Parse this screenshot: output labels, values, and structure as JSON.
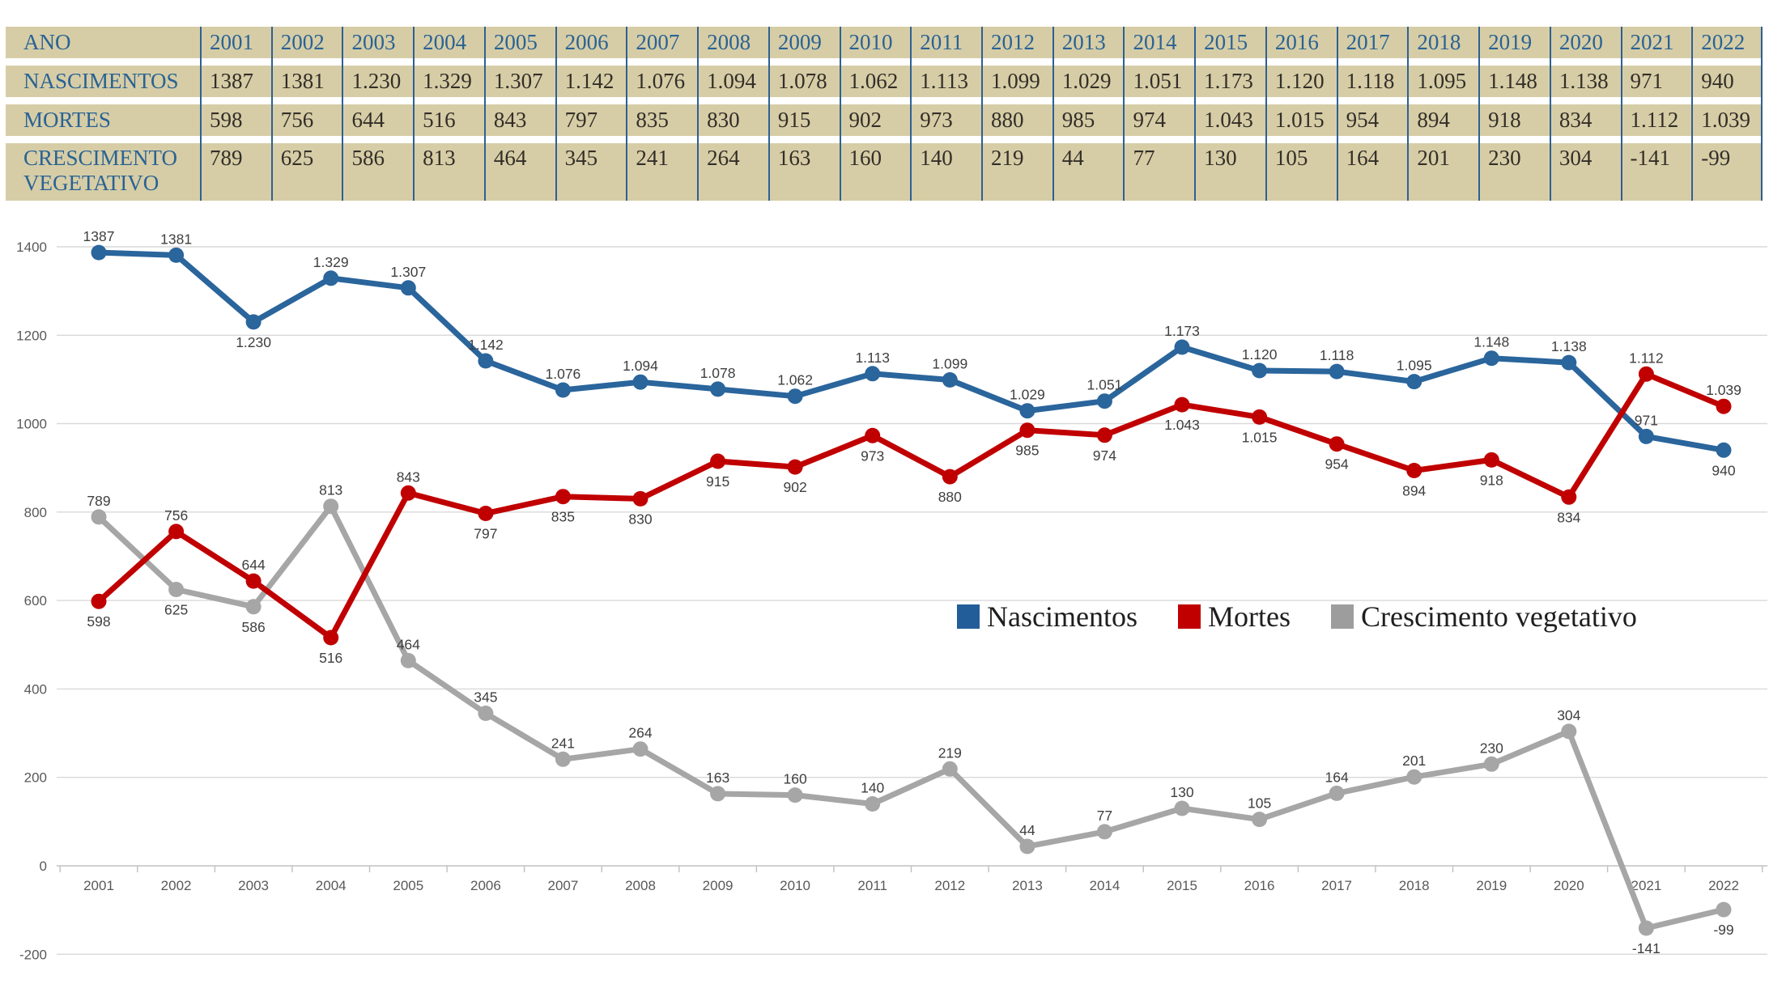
{
  "table": {
    "header_label": "ANO",
    "years": [
      "2001",
      "2002",
      "2003",
      "2004",
      "2005",
      "2006",
      "2007",
      "2008",
      "2009",
      "2010",
      "2011",
      "2012",
      "2013",
      "2014",
      "2015",
      "2016",
      "2017",
      "2018",
      "2019",
      "2020",
      "2021",
      "2022"
    ],
    "rows": [
      {
        "label": "NASCIMENTOS",
        "values": [
          "1387",
          "1381",
          "1.230",
          "1.329",
          "1.307",
          "1.142",
          "1.076",
          "1.094",
          "1.078",
          "1.062",
          "1.113",
          "1.099",
          "1.029",
          "1.051",
          "1.173",
          "1.120",
          "1.118",
          "1.095",
          "1.148",
          "1.138",
          "971",
          "940"
        ]
      },
      {
        "label": "MORTES",
        "values": [
          "598",
          "756",
          "644",
          "516",
          "843",
          "797",
          "835",
          "830",
          "915",
          "902",
          "973",
          "880",
          "985",
          "974",
          "1.043",
          "1.015",
          "954",
          "894",
          "918",
          "834",
          "1.112",
          "1.039"
        ]
      },
      {
        "label": "CRESCIMENTO VEGETATIVO",
        "values": [
          "789",
          "625",
          "586",
          "813",
          "464",
          "345",
          "241",
          "264",
          "163",
          "160",
          "140",
          "219",
          "44",
          "77",
          "130",
          "105",
          "164",
          "201",
          "230",
          "304",
          "-141",
          "-99"
        ]
      }
    ]
  },
  "chart_data": {
    "type": "line",
    "title": "",
    "xlabel": "",
    "ylabel": "",
    "categories": [
      "2001",
      "2002",
      "2003",
      "2004",
      "2005",
      "2006",
      "2007",
      "2008",
      "2009",
      "2010",
      "2011",
      "2012",
      "2013",
      "2014",
      "2015",
      "2016",
      "2017",
      "2018",
      "2019",
      "2020",
      "2021",
      "2022"
    ],
    "ylim": [
      -200,
      1400
    ],
    "ytick_step": 200,
    "grid": true,
    "legend_position": "middle-right",
    "series": [
      {
        "name": "Nascimentos",
        "color": "#2a659c",
        "values": [
          1387,
          1381,
          1230,
          1329,
          1307,
          1142,
          1076,
          1094,
          1078,
          1062,
          1113,
          1099,
          1029,
          1051,
          1173,
          1120,
          1118,
          1095,
          1148,
          1138,
          971,
          940
        ],
        "labels": [
          "1387",
          "1381",
          "1.230",
          "1.329",
          "1.307",
          "1.142",
          "1.076",
          "1.094",
          "1.078",
          "1.062",
          "1.113",
          "1.099",
          "1.029",
          "1.051",
          "1.173",
          "1.120",
          "1.118",
          "1.095",
          "1.148",
          "1.138",
          "971",
          "940"
        ],
        "label_side": [
          "above",
          "above",
          "below",
          "above",
          "above",
          "above",
          "above",
          "above",
          "above",
          "above",
          "above",
          "above",
          "above",
          "above",
          "above",
          "above",
          "above",
          "above",
          "above",
          "above",
          "above",
          "below"
        ]
      },
      {
        "name": "Mortes",
        "color": "#c00000",
        "values": [
          598,
          756,
          644,
          516,
          843,
          797,
          835,
          830,
          915,
          902,
          973,
          880,
          985,
          974,
          1043,
          1015,
          954,
          894,
          918,
          834,
          1112,
          1039
        ],
        "labels": [
          "598",
          "756",
          "644",
          "516",
          "843",
          "797",
          "835",
          "830",
          "915",
          "902",
          "973",
          "880",
          "985",
          "974",
          "1.043",
          "1.015",
          "954",
          "894",
          "918",
          "834",
          "1.112",
          "1.039"
        ],
        "label_side": [
          "below",
          "above",
          "above",
          "below",
          "above",
          "below",
          "below",
          "below",
          "below",
          "below",
          "below",
          "below",
          "below",
          "below",
          "below",
          "below",
          "below",
          "below",
          "below",
          "below",
          "above",
          "above"
        ]
      },
      {
        "name": "Crescimento vegetativo",
        "color": "#a6a6a6",
        "values": [
          789,
          625,
          586,
          813,
          464,
          345,
          241,
          264,
          163,
          160,
          140,
          219,
          44,
          77,
          130,
          105,
          164,
          201,
          230,
          304,
          -141,
          -99
        ],
        "labels": [
          "789",
          "625",
          "586",
          "813",
          "464",
          "345",
          "241",
          "264",
          "163",
          "160",
          "140",
          "219",
          "44",
          "77",
          "130",
          "105",
          "164",
          "201",
          "230",
          "304",
          "-141",
          "-99"
        ],
        "label_side": [
          "above",
          "below",
          "below",
          "above",
          "above",
          "above",
          "above",
          "above",
          "above",
          "above",
          "above",
          "above",
          "above",
          "above",
          "above",
          "above",
          "above",
          "above",
          "above",
          "above",
          "below",
          "below"
        ]
      }
    ]
  },
  "legend": {
    "items": [
      {
        "label": "Nascimentos",
        "color": "#235d99"
      },
      {
        "label": "Mortes",
        "color": "#c00000"
      },
      {
        "label": "Crescimento vegetativo",
        "color": "#9d9d9d"
      }
    ]
  },
  "colors": {
    "table_background": "#d6cda6",
    "table_header_text": "#2a6294",
    "table_divider": "#2e6093",
    "gridline": "#d9d9d9",
    "axis_line": "#c0c0c0",
    "axis_text": "#595959",
    "data_label_text": "#3f3f3f"
  }
}
